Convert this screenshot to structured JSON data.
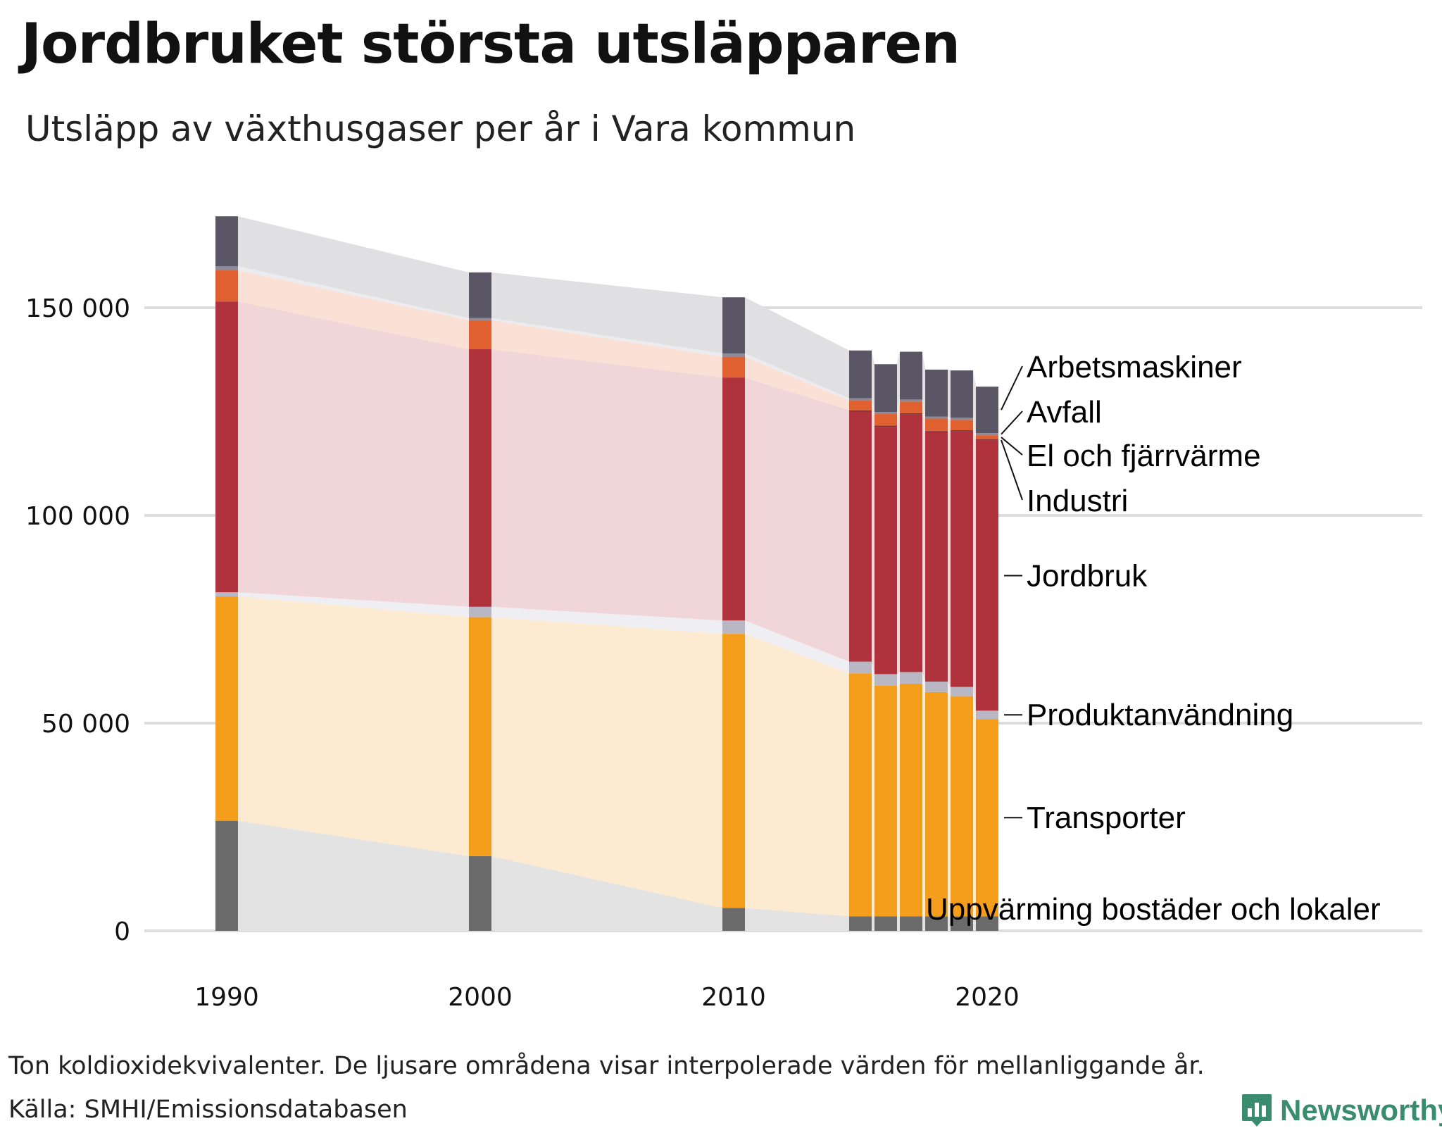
{
  "title": "Jordbruket största utsläpparen",
  "subtitle": "Utsläpp av växthusgaser per år i Vara kommun",
  "note": "Ton koldioxidekvivalenter. De ljusare områdena visar interpolerade värden för mellanliggande år.",
  "source": "Källa: SMHI/Emissionsdatabasen",
  "brand": "Newsworthy",
  "colors": {
    "brand": "#3a8c6e",
    "grid": "#dddddd"
  },
  "chart_data": {
    "type": "bar",
    "stacked": true,
    "x": [
      1990,
      2000,
      2010,
      2015,
      2016,
      2017,
      2018,
      2019,
      2020
    ],
    "xticks": [
      "1990",
      "2000",
      "2010",
      "2020"
    ],
    "yticks": [
      "0",
      "50 000",
      "100 000",
      "150 000"
    ],
    "ytick_values": [
      0,
      50000,
      100000,
      150000
    ],
    "ylim": [
      0,
      175000
    ],
    "grid": true,
    "interpolated_areas": true,
    "series": [
      {
        "name": "Uppvärming bostäder och lokaler",
        "color": "#6b6b6b",
        "fill": "#e3e3e3",
        "values": [
          26500,
          18000,
          5500,
          3500,
          3500,
          3500,
          3500,
          3500,
          3500
        ]
      },
      {
        "name": "Transporter",
        "color": "#f59e1b",
        "fill": "#fcebd0",
        "values": [
          54000,
          57500,
          66000,
          58500,
          55500,
          56000,
          54000,
          53000,
          47500
        ]
      },
      {
        "name": "Produktanvändning",
        "color": "#b9b7c3",
        "fill": "#efeef2",
        "values": [
          1000,
          2500,
          3200,
          2800,
          2800,
          2800,
          2500,
          2200,
          2000
        ]
      },
      {
        "name": "Jordbruk",
        "color": "#b0323c",
        "fill": "#f0d6d9",
        "values": [
          70000,
          62000,
          58500,
          60200,
          59500,
          62000,
          60000,
          61500,
          65000
        ]
      },
      {
        "name": "Industri",
        "color": "#7d2a3c",
        "fill": "#ecd0d6",
        "values": [
          0,
          0,
          0,
          300,
          300,
          300,
          300,
          300,
          300
        ]
      },
      {
        "name": "El och fjärrvärme",
        "color": "#e06030",
        "fill": "#fbe0d6",
        "values": [
          7500,
          7000,
          5000,
          2400,
          2800,
          2800,
          3000,
          2500,
          1000
        ]
      },
      {
        "name": "Avfall",
        "color": "#8a8a9a",
        "fill": "#ececf0",
        "values": [
          1000,
          500,
          800,
          500,
          500,
          500,
          500,
          500,
          500
        ]
      },
      {
        "name": "Arbetsmaskiner",
        "color": "#5a5666",
        "fill": "#e0e0e3",
        "values": [
          12000,
          11000,
          13500,
          11500,
          11500,
          11500,
          11300,
          11400,
          11200
        ]
      }
    ]
  }
}
